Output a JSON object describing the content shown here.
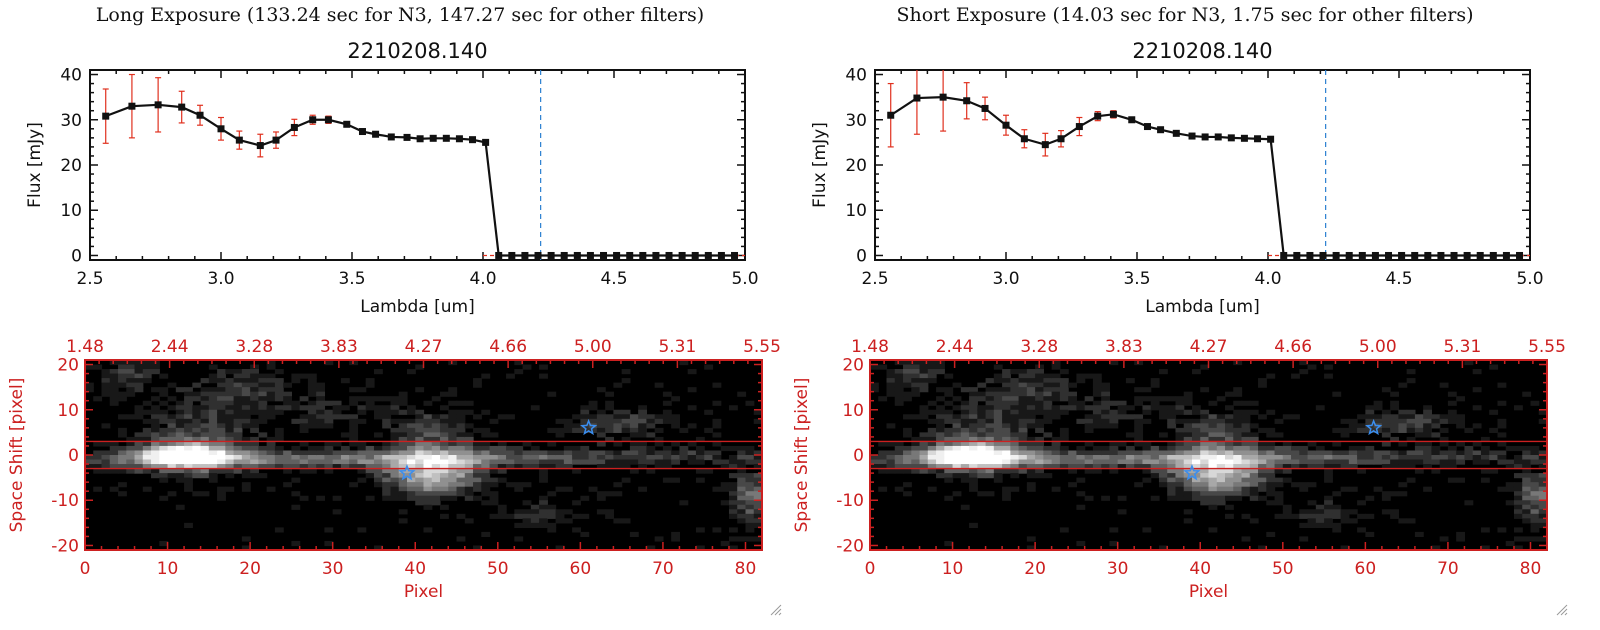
{
  "panels": [
    {
      "heading": "Long Exposure (133.24 sec for N3, 147.27 sec for other filters)"
    },
    {
      "heading": "Short Exposure (14.03 sec for N3, 1.75 sec for other filters)"
    }
  ],
  "colors": {
    "errorbar": "#e0301e",
    "marker": "#111111",
    "dashed": "#2a7fd0",
    "frame_red": "#cc2020",
    "star": "#3a8ef0"
  },
  "icons": [
    "star-marker",
    "resize-grip-icon"
  ],
  "chart_data": [
    {
      "type": "line",
      "title": "2210208.140",
      "xlabel": "Lambda [um]",
      "ylabel": "Flux [mJy]",
      "xlim": [
        2.5,
        5.0
      ],
      "ylim": [
        -1,
        41
      ],
      "xticks": [
        "2.5",
        "3.0",
        "3.5",
        "4.0",
        "4.5",
        "5.0"
      ],
      "yticks": [
        "0",
        "10",
        "20",
        "30",
        "40"
      ],
      "cutoff_line_x": 4.22,
      "series": [
        {
          "x": [
            2.56,
            2.66,
            2.76,
            2.85,
            2.92,
            3.0,
            3.07,
            3.15,
            3.21,
            3.28,
            3.35,
            3.41,
            3.48,
            3.54,
            3.59,
            3.65,
            3.71,
            3.76,
            3.81,
            3.86,
            3.91,
            3.96,
            4.01,
            4.06,
            4.11,
            4.16,
            4.21,
            4.26,
            4.31,
            4.36,
            4.41,
            4.46,
            4.51,
            4.56,
            4.61,
            4.66,
            4.71,
            4.76,
            4.81,
            4.86,
            4.91,
            4.96
          ],
          "y": [
            30.8,
            33.0,
            33.3,
            32.8,
            31.0,
            28.0,
            25.5,
            24.3,
            25.5,
            28.3,
            30.0,
            30.0,
            29.0,
            27.4,
            26.8,
            26.2,
            26.1,
            25.8,
            25.9,
            25.9,
            25.8,
            25.6,
            25.0,
            0,
            0,
            0,
            0,
            0,
            0,
            0,
            0,
            0,
            0,
            0,
            0,
            0,
            0,
            0,
            0,
            0,
            0,
            0
          ],
          "yerr": [
            6.0,
            7.0,
            6.0,
            3.5,
            2.2,
            2.5,
            2.0,
            2.5,
            1.8,
            1.8,
            1.0,
            0.8,
            0.5,
            0.5,
            0.5,
            0.5,
            0.5,
            0.5,
            0.5,
            0.5,
            0.5,
            0.5,
            0.5,
            0,
            0,
            0,
            0,
            0,
            0,
            0,
            0,
            0,
            0,
            0,
            0,
            0,
            0,
            0,
            0,
            0,
            0,
            0
          ]
        }
      ]
    },
    {
      "type": "line",
      "title": "2210208.140",
      "xlabel": "Lambda [um]",
      "ylabel": "Flux [mJy]",
      "xlim": [
        2.5,
        5.0
      ],
      "ylim": [
        -1,
        41
      ],
      "xticks": [
        "2.5",
        "3.0",
        "3.5",
        "4.0",
        "4.5",
        "5.0"
      ],
      "yticks": [
        "0",
        "10",
        "20",
        "30",
        "40"
      ],
      "cutoff_line_x": 4.22,
      "series": [
        {
          "x": [
            2.56,
            2.66,
            2.76,
            2.85,
            2.92,
            3.0,
            3.07,
            3.15,
            3.21,
            3.28,
            3.35,
            3.41,
            3.48,
            3.54,
            3.59,
            3.65,
            3.71,
            3.76,
            3.81,
            3.86,
            3.91,
            3.96,
            4.01,
            4.06,
            4.11,
            4.16,
            4.21,
            4.26,
            4.31,
            4.36,
            4.41,
            4.46,
            4.51,
            4.56,
            4.61,
            4.66,
            4.71,
            4.76,
            4.81,
            4.86,
            4.91,
            4.96
          ],
          "y": [
            31.0,
            34.8,
            35.0,
            34.2,
            32.5,
            28.8,
            25.8,
            24.5,
            25.8,
            28.5,
            30.8,
            31.2,
            30.0,
            28.5,
            27.8,
            27.0,
            26.4,
            26.2,
            26.2,
            26.0,
            25.9,
            25.8,
            25.7,
            0,
            0,
            0,
            0,
            0,
            0,
            0,
            0,
            0,
            0,
            0,
            0,
            0,
            0,
            0,
            0,
            0,
            0,
            0
          ],
          "yerr": [
            7.0,
            8.0,
            7.5,
            4.0,
            2.5,
            2.2,
            2.0,
            2.5,
            1.8,
            2.0,
            1.0,
            0.8,
            0.5,
            0.5,
            0.5,
            0.5,
            0.5,
            0.5,
            0.5,
            0.5,
            0.5,
            0.5,
            0.5,
            0,
            0,
            0,
            0,
            0,
            0,
            0,
            0,
            0,
            0,
            0,
            0,
            0,
            0,
            0,
            0,
            0,
            0,
            0
          ]
        }
      ]
    },
    {
      "type": "heatmap",
      "xlabel": "Pixel",
      "ylabel": "Space Shift [pixel]",
      "xlim": [
        0,
        82
      ],
      "ylim": [
        -21,
        21
      ],
      "xticks": [
        "0",
        "10",
        "20",
        "30",
        "40",
        "50",
        "60",
        "70",
        "80"
      ],
      "yticks": [
        "-20",
        "-10",
        "0",
        "10",
        "20"
      ],
      "top_axis_ticks": [
        "1.48",
        "2.44",
        "3.28",
        "3.83",
        "4.27",
        "4.66",
        "5.00",
        "5.31",
        "5.55"
      ],
      "aperture_rows": [
        -3,
        3
      ],
      "stars": [
        {
          "x": 39,
          "y": -4
        },
        {
          "x": 61,
          "y": 6
        }
      ]
    },
    {
      "type": "heatmap",
      "xlabel": "Pixel",
      "ylabel": "Space Shift [pixel]",
      "xlim": [
        0,
        82
      ],
      "ylim": [
        -21,
        21
      ],
      "xticks": [
        "0",
        "10",
        "20",
        "30",
        "40",
        "50",
        "60",
        "70",
        "80"
      ],
      "yticks": [
        "-20",
        "-10",
        "0",
        "10",
        "20"
      ],
      "top_axis_ticks": [
        "1.48",
        "2.44",
        "3.28",
        "3.83",
        "4.27",
        "4.66",
        "5.00",
        "5.31",
        "5.55"
      ],
      "aperture_rows": [
        -3,
        3
      ],
      "stars": [
        {
          "x": 39,
          "y": -4
        },
        {
          "x": 61,
          "y": 6
        }
      ]
    }
  ]
}
